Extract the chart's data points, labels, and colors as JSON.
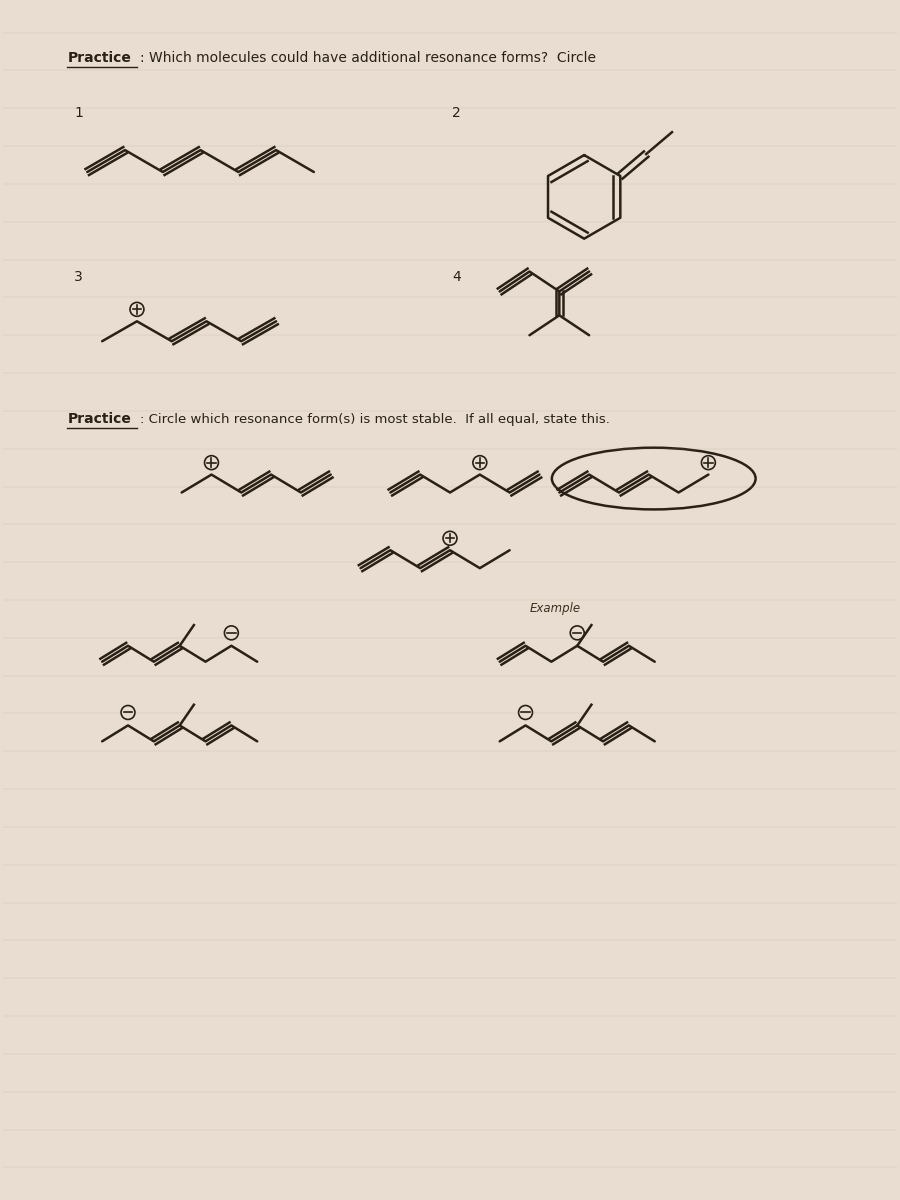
{
  "bg_color": "#e8ddd0",
  "line_color": "#2a2015",
  "line_width": 1.8,
  "title1_bold": "Practice",
  "title1_rest": ": Which molecules could have additional resonance forms?  Circle",
  "title2_bold": "Practice",
  "title2_rest": ": Circle which resonance form(s) is most stable.  If all equal, state this.",
  "label1": "1",
  "label2": "2",
  "label3": "3",
  "label4": "4"
}
